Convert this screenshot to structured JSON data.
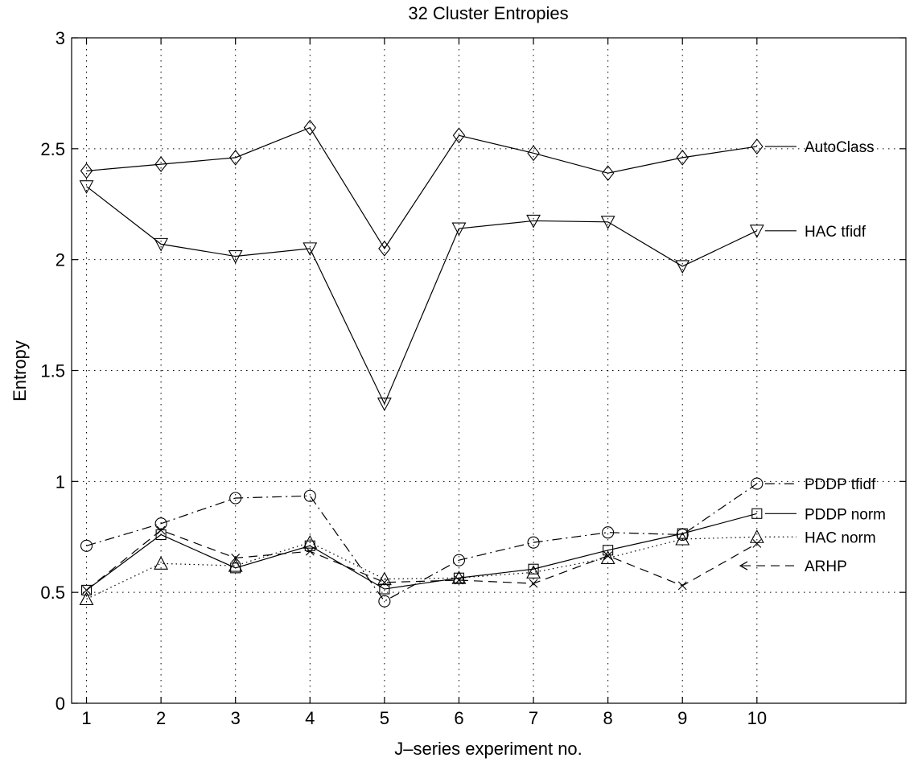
{
  "chart_data": {
    "type": "line",
    "title": "32 Cluster Entropies",
    "xlabel": "J–series experiment no.",
    "ylabel": "Entropy",
    "x": [
      1,
      2,
      3,
      4,
      5,
      6,
      7,
      8,
      9,
      10
    ],
    "xlim": [
      0.8,
      12
    ],
    "ylim": [
      0,
      3
    ],
    "xticks": [
      1,
      2,
      3,
      4,
      5,
      6,
      7,
      8,
      9,
      10
    ],
    "xtick_labels": [
      "1",
      "2",
      "3",
      "4",
      "5",
      "6",
      "7",
      "8",
      "9",
      "10"
    ],
    "yticks": [
      0,
      0.5,
      1,
      1.5,
      2,
      2.5,
      3
    ],
    "ytick_labels": [
      "0",
      "0.5",
      "1",
      "1.5",
      "2",
      "2.5",
      "3"
    ],
    "grid": true,
    "legend_placement": "right, inline labels",
    "series": [
      {
        "name": "AutoClass",
        "line_style": "solid",
        "marker": "diamond",
        "values": [
          2.4,
          2.43,
          2.46,
          2.595,
          2.05,
          2.56,
          2.48,
          2.39,
          2.46,
          2.51
        ],
        "legend_y": 2.51,
        "legend_line": "solid"
      },
      {
        "name": "HAC tfidf",
        "line_style": "solid",
        "marker": "triangle-down",
        "values": [
          2.33,
          2.07,
          2.015,
          2.05,
          1.35,
          2.14,
          2.175,
          2.17,
          1.97,
          2.13
        ],
        "legend_y": 2.13,
        "legend_line": "solid"
      },
      {
        "name": "PDDP tfidf",
        "line_style": "dashdot",
        "marker": "circle",
        "values": [
          0.71,
          0.81,
          0.925,
          0.935,
          0.46,
          0.645,
          0.725,
          0.77,
          0.76,
          0.99
        ],
        "legend_y": 0.99,
        "legend_line": "dashdot"
      },
      {
        "name": "PDDP norm",
        "line_style": "solid",
        "marker": "square",
        "values": [
          0.51,
          0.76,
          0.61,
          0.71,
          0.515,
          0.565,
          0.605,
          0.69,
          0.765,
          0.855
        ],
        "legend_y": 0.855,
        "legend_line": "solid"
      },
      {
        "name": "HAC norm",
        "line_style": "dotted",
        "marker": "triangle-up",
        "values": [
          0.47,
          0.63,
          0.62,
          0.725,
          0.56,
          0.565,
          0.59,
          0.655,
          0.74,
          0.75
        ],
        "legend_y": 0.75,
        "legend_line": "dotted"
      },
      {
        "name": "ARHP",
        "line_style": "dashed",
        "marker": "x",
        "values": [
          0.51,
          0.78,
          0.655,
          0.685,
          0.545,
          0.555,
          0.54,
          0.665,
          0.53,
          0.72
        ],
        "legend_y": 0.62,
        "legend_line": "dashed-arrow"
      }
    ]
  }
}
